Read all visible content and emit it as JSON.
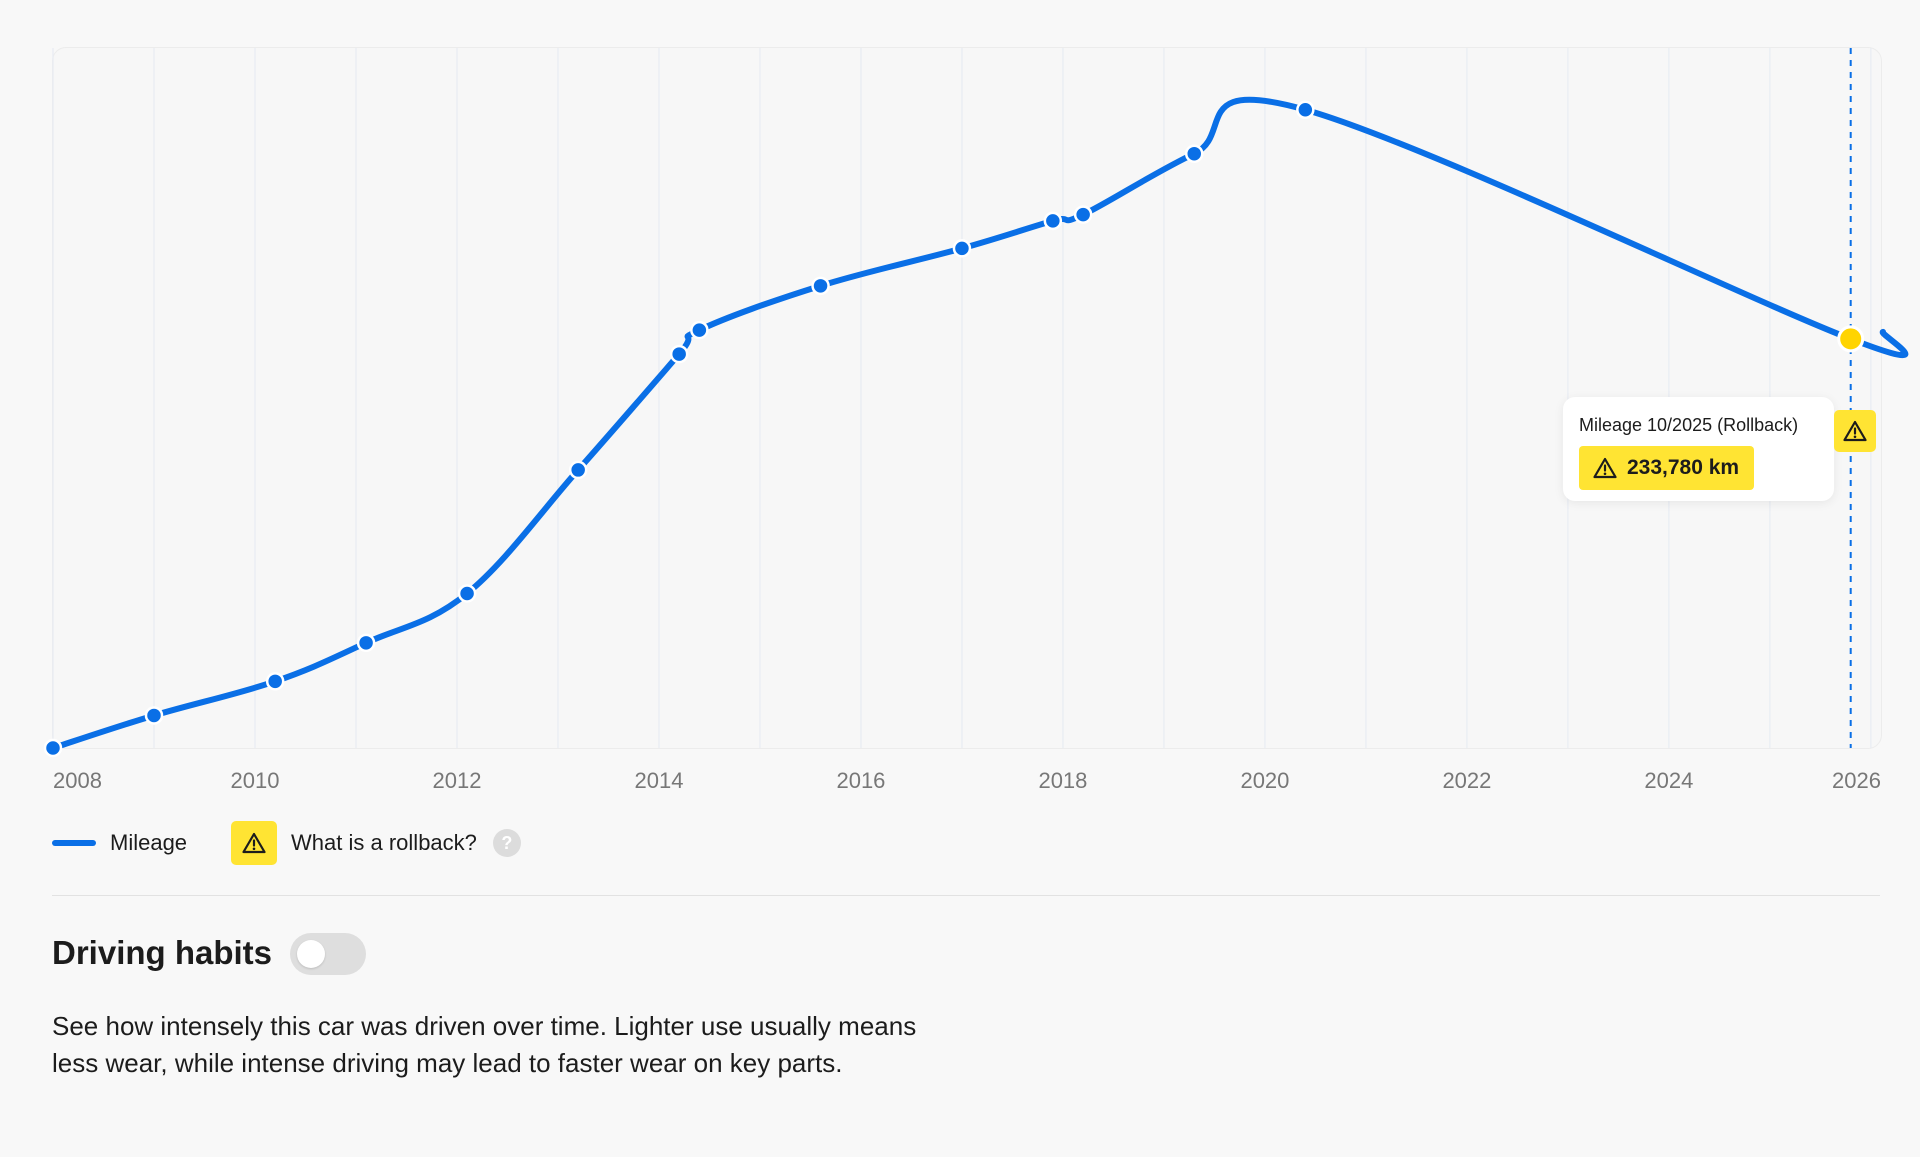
{
  "chart_data": {
    "type": "line",
    "x_ticks": [
      "2008",
      "2010",
      "2012",
      "2014",
      "2016",
      "2018",
      "2020",
      "2022",
      "2024",
      "2026"
    ],
    "x_range": [
      2008.0,
      2026.1
    ],
    "y_range": [
      0,
      400000
    ],
    "grid": "vertical",
    "series": [
      {
        "name": "Mileage",
        "color": "#0a6fe6",
        "points": [
          {
            "x": 2008.0,
            "y": 0
          },
          {
            "x": 2009.0,
            "y": 18600
          },
          {
            "x": 2010.2,
            "y": 38100
          },
          {
            "x": 2011.1,
            "y": 60100
          },
          {
            "x": 2012.1,
            "y": 88300
          },
          {
            "x": 2013.2,
            "y": 158900
          },
          {
            "x": 2014.2,
            "y": 225100
          },
          {
            "x": 2014.4,
            "y": 238800
          },
          {
            "x": 2015.6,
            "y": 264100
          },
          {
            "x": 2017.0,
            "y": 285500
          },
          {
            "x": 2017.9,
            "y": 301200
          },
          {
            "x": 2018.2,
            "y": 304800
          },
          {
            "x": 2019.3,
            "y": 339600
          },
          {
            "x": 2020.4,
            "y": 364700
          },
          {
            "x": 2025.8,
            "y": 233780,
            "rollback": true
          }
        ]
      }
    ]
  },
  "tooltip": {
    "title": "Mileage 10/2025 (Rollback)",
    "value": "233,780 km"
  },
  "legend": {
    "mileage_label": "Mileage",
    "rollback_label": "What is a rollback?",
    "help_symbol": "?"
  },
  "section": {
    "title": "Driving habits",
    "toggle_on": false,
    "description": "See how intensely this car was driven over time. Lighter use usually means less wear, while intense driving may lead to faster wear on key parts."
  },
  "colors": {
    "line": "#0a6fe6",
    "rollback_point": "#ffd400",
    "warning_bg": "#ffe433",
    "grid": "#e8ecf3"
  },
  "icons": {
    "warning": "warning-triangle-icon",
    "help": "help-circle-icon"
  }
}
